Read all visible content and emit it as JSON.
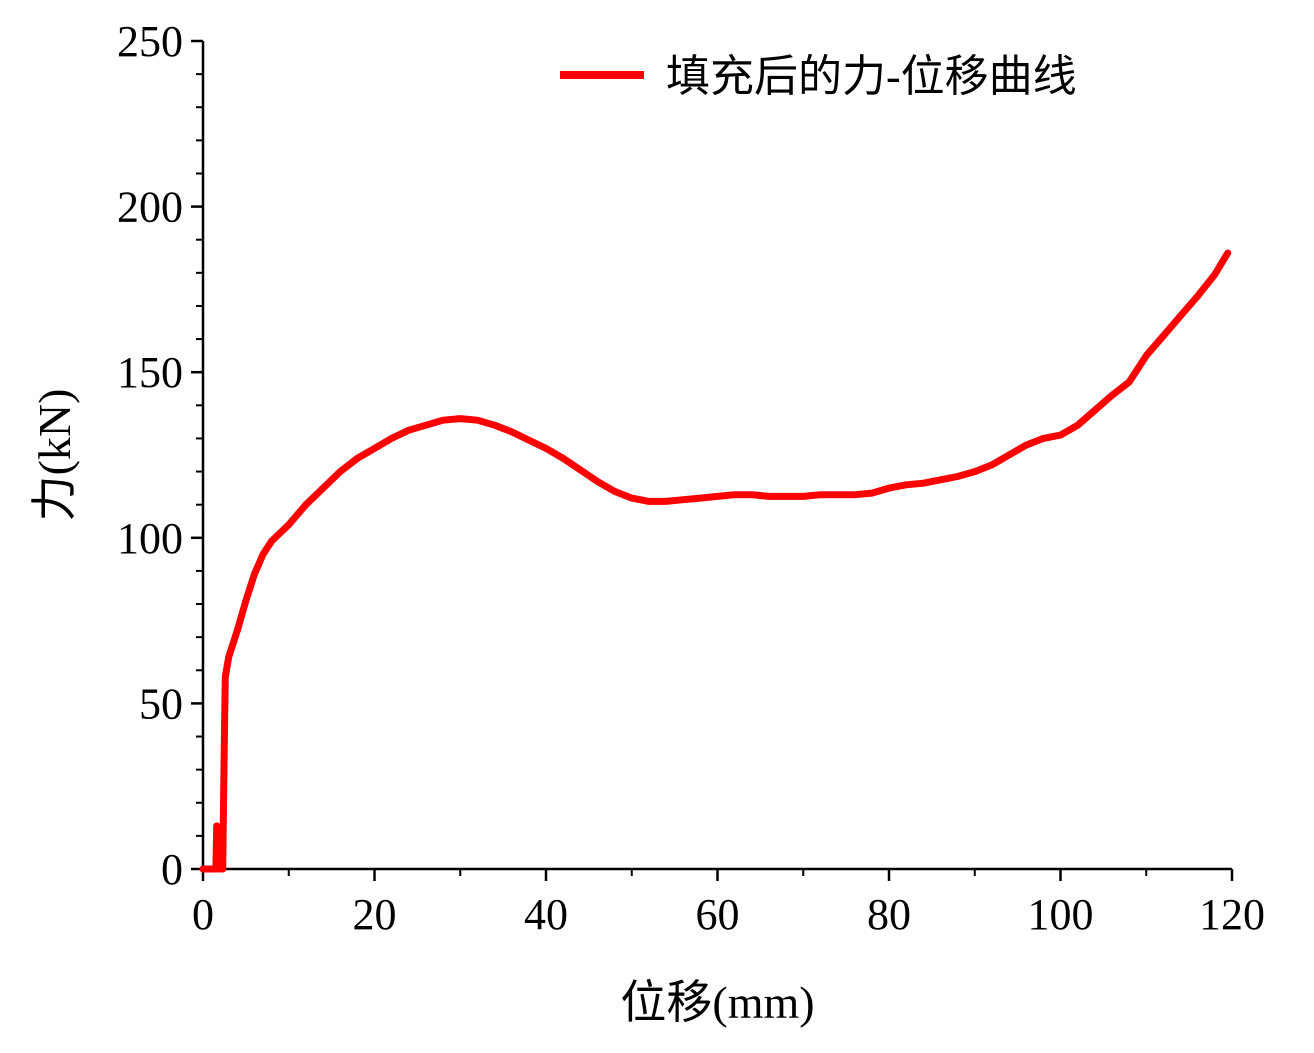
{
  "chart_data": {
    "type": "line",
    "xlabel": "位移(mm)",
    "ylabel": "力(kN)",
    "xlim": [
      0,
      120
    ],
    "ylim": [
      0,
      250
    ],
    "xticks": [
      0,
      20,
      40,
      60,
      80,
      100,
      120
    ],
    "yticks": [
      0,
      50,
      100,
      150,
      200,
      250
    ],
    "xtick_labels": [
      "0",
      "20",
      "40",
      "60",
      "80",
      "100",
      "120"
    ],
    "ytick_labels": [
      "0",
      "50",
      "100",
      "150",
      "200",
      "250"
    ],
    "minor_ticks": true,
    "grid": false,
    "legend_position": "top-right",
    "series": [
      {
        "name": "填充后的力-位移曲线",
        "color": "#ff0000",
        "x": [
          0,
          1.5,
          1.6,
          1.65,
          2.0,
          2.3,
          2.5,
          2.6,
          3,
          4,
          5,
          6,
          7,
          8,
          10,
          12,
          14,
          16,
          18,
          20,
          22,
          24,
          26,
          28,
          30,
          32,
          34,
          36,
          38,
          40,
          42,
          44,
          46,
          48,
          50,
          52,
          54,
          56,
          58,
          60,
          62,
          64,
          66,
          68,
          70,
          72,
          74,
          76,
          78,
          80,
          82,
          84,
          86,
          88,
          90,
          92,
          94,
          96,
          98,
          100,
          102,
          104,
          106,
          108,
          110,
          112,
          114,
          116,
          118,
          119.5
        ],
        "y": [
          0,
          0,
          13,
          0,
          0,
          0,
          40,
          58,
          64,
          72,
          81,
          89,
          95,
          99,
          104,
          110,
          115,
          120,
          124,
          127,
          130,
          132.5,
          134,
          135.5,
          136,
          135.5,
          134,
          132,
          129.5,
          127,
          124,
          120.5,
          117,
          114,
          112,
          111,
          111,
          111.5,
          112,
          112.5,
          113,
          113,
          112.5,
          112.5,
          112.5,
          113,
          113,
          113,
          113.5,
          115,
          116,
          116.5,
          117.5,
          118.5,
          120,
          122,
          125,
          128,
          130,
          131,
          134,
          138.5,
          143,
          147,
          155,
          161,
          167,
          173,
          179.5,
          186
        ]
      }
    ]
  }
}
